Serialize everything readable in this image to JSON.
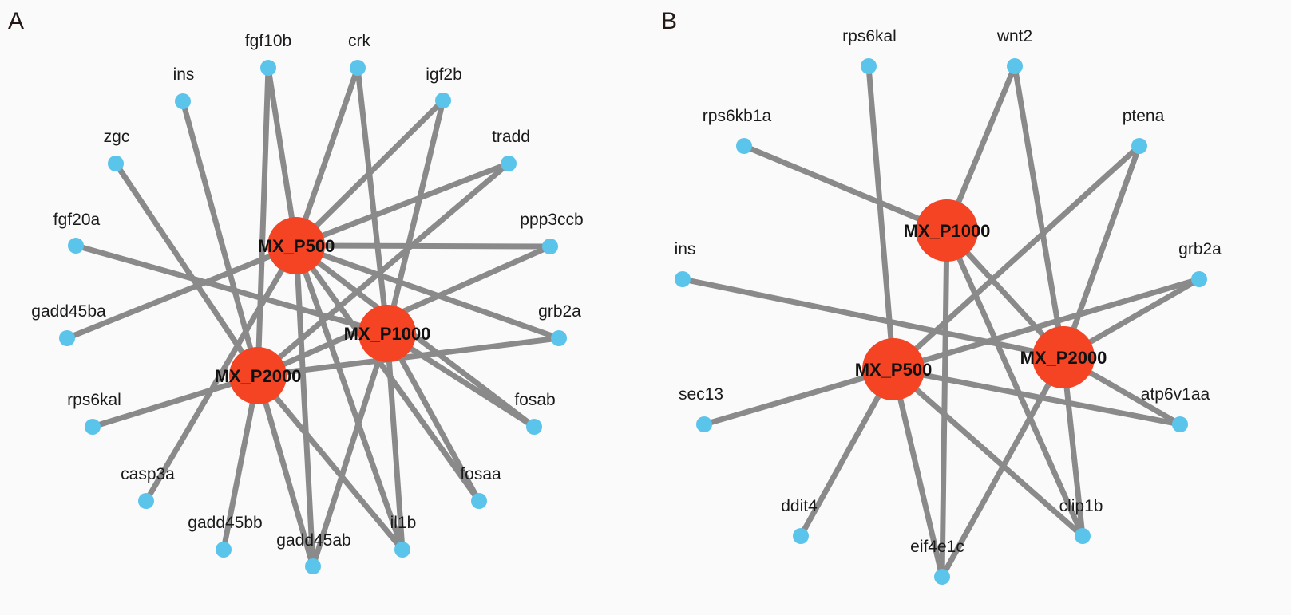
{
  "colors": {
    "edge": "#8a8a8a",
    "gene": "#5bc4ea",
    "hub": "#f44424"
  },
  "panels": [
    {
      "letter": "A",
      "hubs": [
        "MX_P500",
        "MX_P1000",
        "MX_P2000"
      ],
      "genes": [
        "fgf10b",
        "crk",
        "igf2b",
        "ins",
        "tradd",
        "zgc",
        "ppp3ccb",
        "fgf20a",
        "grb2a",
        "gadd45ba",
        "fosab",
        "rps6kal",
        "fosaa",
        "casp3a",
        "il1b",
        "gadd45bb",
        "gadd45ab"
      ],
      "edges": [
        [
          "MX_P500",
          "fgf10b"
        ],
        [
          "MX_P500",
          "crk"
        ],
        [
          "MX_P500",
          "igf2b"
        ],
        [
          "MX_P500",
          "tradd"
        ],
        [
          "MX_P500",
          "ppp3ccb"
        ],
        [
          "MX_P500",
          "gadd45ba"
        ],
        [
          "MX_P500",
          "grb2a"
        ],
        [
          "MX_P500",
          "fosab"
        ],
        [
          "MX_P500",
          "fosaa"
        ],
        [
          "MX_P500",
          "il1b"
        ],
        [
          "MX_P500",
          "gadd45ab"
        ],
        [
          "MX_P500",
          "casp3a"
        ],
        [
          "MX_P1000",
          "crk"
        ],
        [
          "MX_P1000",
          "igf2b"
        ],
        [
          "MX_P1000",
          "fgf20a"
        ],
        [
          "MX_P1000",
          "fosab"
        ],
        [
          "MX_P1000",
          "fosaa"
        ],
        [
          "MX_P1000",
          "il1b"
        ],
        [
          "MX_P1000",
          "gadd45ab"
        ],
        [
          "MX_P2000",
          "fgf10b"
        ],
        [
          "MX_P2000",
          "ins"
        ],
        [
          "MX_P2000",
          "zgc"
        ],
        [
          "MX_P2000",
          "ppp3ccb"
        ],
        [
          "MX_P2000",
          "tradd"
        ],
        [
          "MX_P2000",
          "grb2a"
        ],
        [
          "MX_P2000",
          "rps6kal"
        ],
        [
          "MX_P2000",
          "gadd45bb"
        ],
        [
          "MX_P2000",
          "gadd45ab"
        ],
        [
          "MX_P2000",
          "il1b"
        ]
      ]
    },
    {
      "letter": "B",
      "hubs": [
        "MX_P1000",
        "MX_P500",
        "MX_P2000"
      ],
      "genes": [
        "rps6kal",
        "wnt2",
        "rps6kb1a",
        "ptena",
        "ins",
        "grb2a",
        "sec13",
        "atp6v1aa",
        "ddit4",
        "clip1b",
        "eif4e1c"
      ],
      "edges": [
        [
          "MX_P1000",
          "rps6kb1a"
        ],
        [
          "MX_P1000",
          "wnt2"
        ],
        [
          "MX_P1000",
          "eif4e1c"
        ],
        [
          "MX_P1000",
          "clip1b"
        ],
        [
          "MX_P1000",
          "MX_P2000"
        ],
        [
          "MX_P500",
          "rps6kal"
        ],
        [
          "MX_P500",
          "ptena"
        ],
        [
          "MX_P500",
          "grb2a"
        ],
        [
          "MX_P500",
          "sec13"
        ],
        [
          "MX_P500",
          "atp6v1aa"
        ],
        [
          "MX_P500",
          "ddit4"
        ],
        [
          "MX_P500",
          "eif4e1c"
        ],
        [
          "MX_P500",
          "clip1b"
        ],
        [
          "MX_P2000",
          "wnt2"
        ],
        [
          "MX_P2000",
          "ptena"
        ],
        [
          "MX_P2000",
          "ins"
        ],
        [
          "MX_P2000",
          "grb2a"
        ],
        [
          "MX_P2000",
          "atp6v1aa"
        ],
        [
          "MX_P2000",
          "clip1b"
        ],
        [
          "MX_P2000",
          "eif4e1c"
        ]
      ]
    }
  ]
}
